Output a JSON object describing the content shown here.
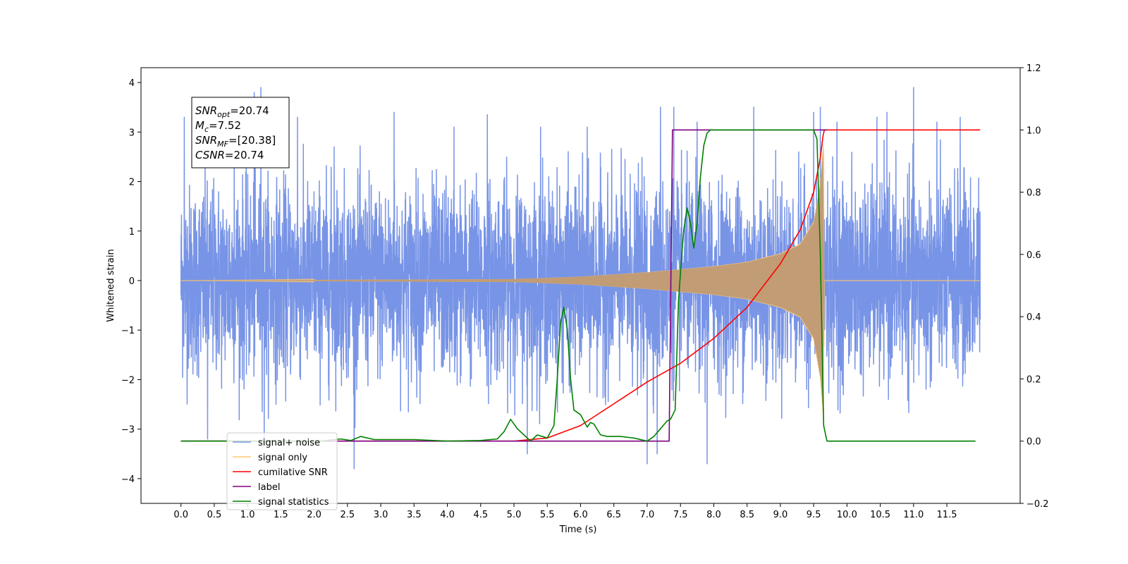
{
  "chart_data": {
    "type": "line",
    "xlabel": "Time (s)",
    "ylabel": "Whitened strain",
    "xlim": [
      -0.6,
      12.6
    ],
    "ylim": [
      -4.5,
      4.3
    ],
    "y2lim": [
      -0.2,
      1.2
    ],
    "grid": false,
    "legend_position": "lower-left",
    "x_ticks": [
      "0.0",
      "0.5",
      "1.0",
      "1.5",
      "2.0",
      "2.5",
      "3.0",
      "3.5",
      "4.0",
      "4.5",
      "5.0",
      "5.5",
      "6.0",
      "6.5",
      "7.0",
      "7.5",
      "8.0",
      "8.5",
      "9.0",
      "9.5",
      "10.0",
      "10.5",
      "11.0",
      "11.5"
    ],
    "x_tick_values": [
      0.0,
      0.5,
      1.0,
      1.5,
      2.0,
      2.5,
      3.0,
      3.5,
      4.0,
      4.5,
      5.0,
      5.5,
      6.0,
      6.5,
      7.0,
      7.5,
      8.0,
      8.5,
      9.0,
      9.5,
      10.0,
      10.5,
      11.0,
      11.5
    ],
    "y_ticks": [
      "4",
      "3",
      "2",
      "1",
      "0",
      "−1",
      "−2",
      "−3",
      "−4"
    ],
    "y_tick_values": [
      4,
      3,
      2,
      1,
      0,
      -1,
      -2,
      -3,
      -4
    ],
    "y2_ticks": [
      "1.2",
      "1.0",
      "0.8",
      "0.6",
      "0.4",
      "0.2",
      "0.0",
      "−0.2"
    ],
    "y2_tick_values": [
      1.2,
      1.0,
      0.8,
      0.6,
      0.4,
      0.2,
      0.0,
      -0.2
    ],
    "annotation": {
      "lines": [
        {
          "sym": "SNR",
          "sub": "opt",
          "val": "=20.74"
        },
        {
          "sym": "M",
          "sub": "c",
          "val": "=7.52"
        },
        {
          "sym": "SNR",
          "sub": "MF",
          "val": "=[20.38]"
        },
        {
          "sym": "CSNR",
          "sub": "",
          "val": "=20.74"
        }
      ]
    },
    "legend": [
      {
        "label": "signal+ noise",
        "color": "#7894e6"
      },
      {
        "label": "signal only",
        "color": "#ffc770"
      },
      {
        "label": "cumilative SNR",
        "color": "#ff0000"
      },
      {
        "label": "label",
        "color": "#800080"
      },
      {
        "label": "signal statistics",
        "color": "#008000"
      }
    ],
    "series": [
      {
        "name": "signal+ noise",
        "axis": "left",
        "color": "#7894e6",
        "x_range": [
          0.0,
          12.0
        ],
        "noise_sigma": 1.0,
        "peaks": [
          [
            0.05,
            3.3
          ],
          [
            0.4,
            -3.2
          ],
          [
            0.8,
            3.0
          ],
          [
            1.1,
            3.8
          ],
          [
            1.2,
            3.9
          ],
          [
            1.25,
            -3.25
          ],
          [
            1.75,
            3.3
          ],
          [
            2.3,
            2.7
          ],
          [
            2.6,
            -3.8
          ],
          [
            3.2,
            3.4
          ],
          [
            4.1,
            3.1
          ],
          [
            4.6,
            3.35
          ],
          [
            5.2,
            -3.5
          ],
          [
            5.4,
            3.1
          ],
          [
            6.1,
            3.1
          ],
          [
            7.0,
            -3.7
          ],
          [
            7.15,
            -3.5
          ],
          [
            7.2,
            3.5
          ],
          [
            7.4,
            3.5
          ],
          [
            7.75,
            3.2
          ],
          [
            7.9,
            -3.7
          ],
          [
            8.6,
            3.5
          ],
          [
            9.5,
            3.4
          ],
          [
            9.6,
            3.5
          ],
          [
            9.85,
            3.2
          ],
          [
            10.45,
            3.3
          ],
          [
            10.6,
            3.4
          ],
          [
            11.0,
            3.9
          ],
          [
            11.35,
            3.2
          ],
          [
            11.7,
            3.3
          ]
        ]
      },
      {
        "name": "signal only",
        "axis": "left",
        "color": "#ffc770",
        "x_range": [
          0.0,
          12.0
        ],
        "envelope": {
          "x": [
            0.0,
            5.0,
            6.0,
            7.0,
            7.5,
            8.0,
            8.5,
            9.0,
            9.3,
            9.5,
            9.6,
            9.65,
            9.66,
            12.0
          ],
          "amp": [
            0.0,
            0.03,
            0.08,
            0.17,
            0.23,
            0.29,
            0.38,
            0.55,
            0.75,
            1.2,
            2.0,
            2.9,
            0.0,
            0.0
          ]
        }
      },
      {
        "name": "cumilative SNR",
        "axis": "right",
        "color": "#ff0000",
        "x": [
          0.0,
          5.0,
          5.5,
          6.0,
          6.5,
          7.0,
          7.5,
          8.0,
          8.5,
          9.0,
          9.3,
          9.5,
          9.6,
          9.64,
          9.66,
          12.0
        ],
        "y": [
          0.0,
          0.0,
          0.01,
          0.05,
          0.12,
          0.19,
          0.25,
          0.33,
          0.43,
          0.57,
          0.68,
          0.8,
          0.91,
          0.98,
          1.0,
          1.0
        ]
      },
      {
        "name": "label",
        "axis": "right",
        "color": "#800080",
        "x": [
          0.0,
          7.33,
          7.38,
          9.66,
          9.7
        ],
        "y": [
          0.0,
          0.0,
          1.0,
          1.0,
          1.0
        ]
      },
      {
        "name": "signal statistics",
        "axis": "right",
        "color": "#008000",
        "x": [
          0.0,
          2.1,
          2.4,
          2.55,
          2.7,
          2.9,
          3.5,
          4.0,
          4.5,
          4.75,
          4.85,
          4.95,
          5.05,
          5.15,
          5.25,
          5.35,
          5.5,
          5.6,
          5.65,
          5.7,
          5.75,
          5.8,
          5.85,
          5.9,
          6.0,
          6.1,
          6.15,
          6.2,
          6.3,
          6.4,
          6.6,
          6.8,
          7.0,
          7.1,
          7.2,
          7.3,
          7.35,
          7.42,
          7.47,
          7.52,
          7.55,
          7.6,
          7.65,
          7.7,
          7.75,
          7.8,
          7.85,
          7.9,
          7.95,
          8.0,
          8.1,
          8.3,
          9.5,
          9.55,
          9.6,
          9.65,
          9.7,
          11.93
        ],
        "y": [
          0.0,
          0.0,
          0.007,
          0.002,
          0.015,
          0.005,
          0.005,
          0.0,
          0.002,
          0.007,
          0.03,
          0.07,
          0.04,
          0.02,
          0.0,
          0.02,
          0.01,
          0.05,
          0.2,
          0.38,
          0.43,
          0.36,
          0.2,
          0.1,
          0.085,
          0.045,
          0.06,
          0.055,
          0.02,
          0.015,
          0.015,
          0.01,
          0.0,
          0.015,
          0.04,
          0.065,
          0.07,
          0.1,
          0.45,
          0.6,
          0.68,
          0.75,
          0.7,
          0.62,
          0.7,
          0.85,
          0.95,
          0.99,
          1.0,
          1.0,
          1.0,
          1.0,
          1.0,
          0.97,
          0.6,
          0.05,
          0.0,
          0.0
        ]
      }
    ]
  }
}
